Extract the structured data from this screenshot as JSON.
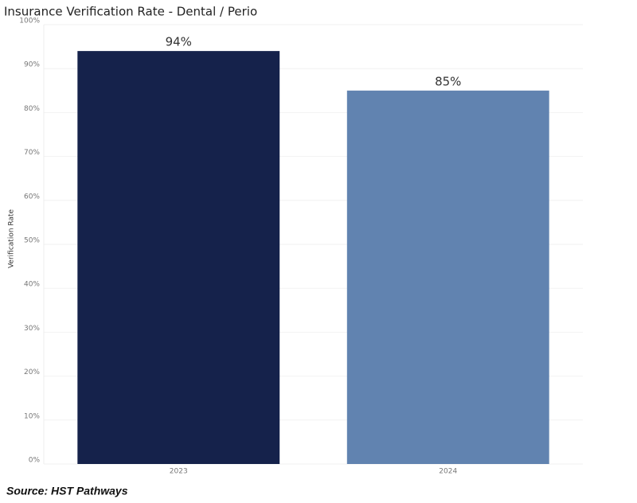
{
  "chart_data": {
    "type": "bar",
    "title": "Insurance Verification Rate - Dental / Perio",
    "y_label": "Verification Rate",
    "categories": [
      "2023",
      "2024"
    ],
    "values": [
      94,
      85
    ],
    "value_labels": [
      "94%",
      "85%"
    ],
    "colors": [
      "#15224b",
      "#6183b0"
    ],
    "ylim": [
      0,
      100
    ],
    "yticks": [
      {
        "value": 0,
        "label": "0%"
      },
      {
        "value": 10,
        "label": "10%"
      },
      {
        "value": 20,
        "label": "20%"
      },
      {
        "value": 30,
        "label": "30%"
      },
      {
        "value": 40,
        "label": "40%"
      },
      {
        "value": 50,
        "label": "50%"
      },
      {
        "value": 60,
        "label": "60%"
      },
      {
        "value": 70,
        "label": "70%"
      },
      {
        "value": 80,
        "label": "80%"
      },
      {
        "value": 90,
        "label": "90%"
      },
      {
        "value": 100,
        "label": "100%"
      }
    ],
    "grid": true,
    "source": "Source: HST Pathways"
  }
}
